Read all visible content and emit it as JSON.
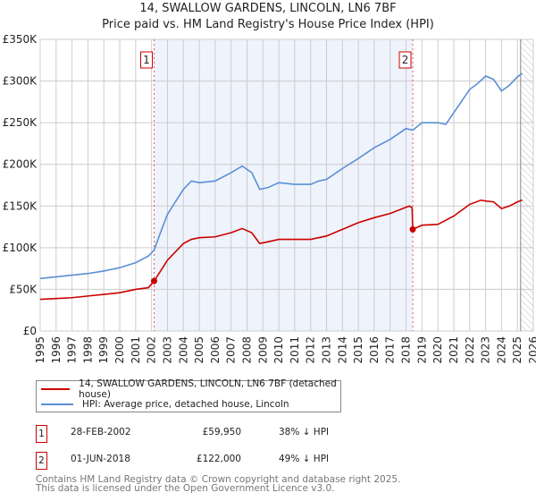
{
  "chart_data": {
    "type": "line",
    "title": "14, SWALLOW GARDENS, LINCOLN, LN6 7BF",
    "subtitle": "Price paid vs. HM Land Registry's House Price Index (HPI)",
    "xlim": [
      1995,
      2026
    ],
    "ylim": [
      0,
      350000
    ],
    "yticks": [
      {
        "v": 0,
        "l": "£0"
      },
      {
        "v": 50000,
        "l": "£50K"
      },
      {
        "v": 100000,
        "l": "£100K"
      },
      {
        "v": 150000,
        "l": "£150K"
      },
      {
        "v": 200000,
        "l": "£200K"
      },
      {
        "v": 250000,
        "l": "£250K"
      },
      {
        "v": 300000,
        "l": "£300K"
      },
      {
        "v": 350000,
        "l": "£350K"
      }
    ],
    "xticks": [
      "1995",
      "1996",
      "1997",
      "1998",
      "1999",
      "2000",
      "2001",
      "2002",
      "2003",
      "2004",
      "2005",
      "2006",
      "2007",
      "2008",
      "2009",
      "2010",
      "2011",
      "2012",
      "2013",
      "2014",
      "2015",
      "2016",
      "2017",
      "2018",
      "2019",
      "2020",
      "2021",
      "2022",
      "2023",
      "2024",
      "2025",
      "2026"
    ],
    "grid": true,
    "shaded_range": [
      2002.16,
      2018.42
    ],
    "hatched_from": 2025.2,
    "series": [
      {
        "name": "14, SWALLOW GARDENS, LINCOLN, LN6 7BF (detached house)",
        "color": "#cc0000",
        "x": [
          1995,
          1996,
          1997,
          1998,
          1999,
          2000,
          2001,
          2001.8,
          2002.16,
          2002.5,
          2003,
          2003.5,
          2004,
          2004.5,
          2005,
          2006,
          2007,
          2007.7,
          2008.3,
          2008.8,
          2009.3,
          2010,
          2011,
          2012,
          2013,
          2014,
          2015,
          2016,
          2017,
          2018.2,
          2018.38,
          2018.42,
          2019,
          2020,
          2021,
          2022,
          2022.7,
          2023,
          2023.5,
          2024,
          2024.5,
          2025,
          2025.3
        ],
        "y": [
          38000,
          39000,
          40000,
          42000,
          44000,
          46000,
          50000,
          52000,
          59950,
          70000,
          85000,
          95000,
          105000,
          110000,
          112000,
          113000,
          118000,
          123000,
          118000,
          105000,
          107000,
          110000,
          110000,
          110000,
          114000,
          122000,
          130000,
          136000,
          141000,
          150000,
          148000,
          122000,
          127000,
          128000,
          138000,
          152000,
          157000,
          156000,
          155000,
          147000,
          150000,
          155000,
          157000
        ]
      },
      {
        "name": "HPI: Average price, detached house, Lincoln",
        "color": "#5b8fd4",
        "x": [
          1995,
          1996,
          1997,
          1998,
          1999,
          2000,
          2001,
          2001.8,
          2002.16,
          2002.5,
          2003,
          2003.5,
          2004,
          2004.5,
          2005,
          2006,
          2007,
          2007.7,
          2008.3,
          2008.8,
          2009.3,
          2010,
          2011,
          2012,
          2012.5,
          2013,
          2014,
          2015,
          2016,
          2017,
          2018,
          2018.42,
          2019,
          2020,
          2020.5,
          2021,
          2022,
          2022.5,
          2023,
          2023.5,
          2024,
          2024.5,
          2025,
          2025.3
        ],
        "y": [
          63000,
          65000,
          67000,
          69000,
          72000,
          76000,
          82000,
          90000,
          97000,
          115000,
          140000,
          155000,
          170000,
          180000,
          178000,
          180000,
          190000,
          198000,
          190000,
          170000,
          172000,
          178000,
          176000,
          176000,
          180000,
          182000,
          195000,
          207000,
          220000,
          230000,
          243000,
          241000,
          250000,
          250000,
          248000,
          262000,
          290000,
          297000,
          306000,
          302000,
          288000,
          295000,
          305000,
          309000
        ]
      }
    ],
    "markers": [
      {
        "label": "1",
        "x": 2002.16,
        "y": 59950
      },
      {
        "label": "2",
        "x": 2018.42,
        "y": 122000
      }
    ]
  },
  "legend": {
    "red": "14, SWALLOW GARDENS, LINCOLN, LN6 7BF (detached house)",
    "blue": "HPI: Average price, detached house, Lincoln"
  },
  "transactions": [
    {
      "num": "1",
      "date": "28-FEB-2002",
      "price": "£59,950",
      "hpi": "38% ↓ HPI"
    },
    {
      "num": "2",
      "date": "01-JUN-2018",
      "price": "£122,000",
      "hpi": "49% ↓ HPI"
    }
  ],
  "footer": {
    "line1": "Contains HM Land Registry data © Crown copyright and database right 2025.",
    "line2": "This data is licensed under the Open Government Licence v3.0."
  }
}
